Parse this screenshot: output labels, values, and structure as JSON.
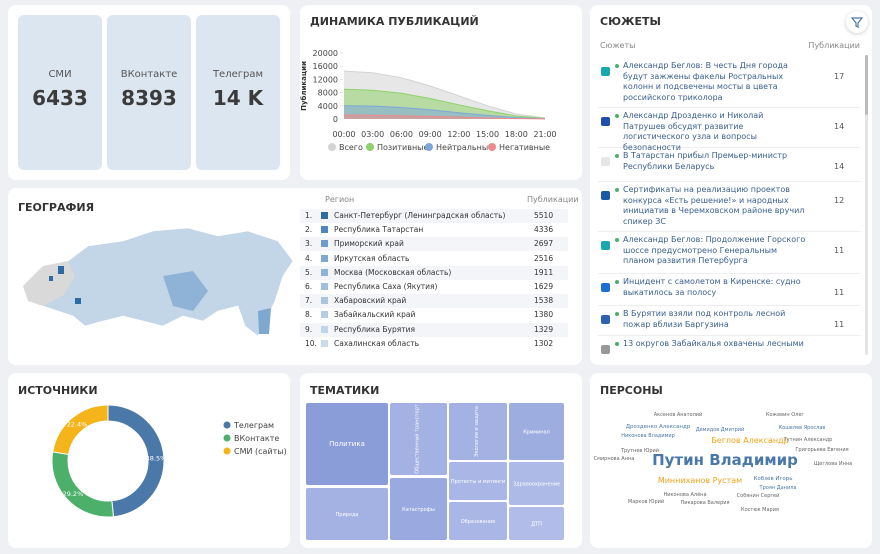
{
  "stats": [
    {
      "label": "СМИ",
      "value": 6433
    },
    {
      "label": "ВКонтакте",
      "value": 8393
    },
    {
      "label": "Телеграм",
      "value": "14 K"
    }
  ],
  "chart_data": [
    {
      "type": "area",
      "title": "ДИНАМИКА ПУБЛИКАЦИЙ",
      "y_label": "Публикации",
      "categories": [
        "00:00",
        "03:00",
        "06:00",
        "09:00",
        "12:00",
        "15:00",
        "18:00",
        "21:00"
      ],
      "series": [
        {
          "name": "Всего",
          "color": "#d4d4d4",
          "values": [
            14500,
            14000,
            12500,
            10000,
            7000,
            4000,
            1500,
            300
          ]
        },
        {
          "name": "Позитивные",
          "color": "#8fd16a",
          "values": [
            9000,
            8700,
            7800,
            6200,
            4300,
            2500,
            900,
            200
          ]
        },
        {
          "name": "Нейтральные",
          "color": "#7ea6d8",
          "values": [
            4000,
            3900,
            3500,
            2800,
            1900,
            1100,
            400,
            80
          ]
        },
        {
          "name": "Негативные",
          "color": "#f08a8a",
          "values": [
            1200,
            1150,
            1000,
            800,
            550,
            300,
            100,
            20
          ]
        }
      ],
      "ylim": [
        0,
        20000
      ],
      "yticks": [
        0,
        4000,
        8000,
        12000,
        16000,
        20000
      ]
    },
    {
      "type": "pie",
      "title": "ИСТОЧНИКИ",
      "donut": true,
      "categories": [
        "Телеграм",
        "ВКонтакте",
        "СМИ (сайты)"
      ],
      "values": [
        48.5,
        29.2,
        22.4
      ],
      "value_labels": [
        "48.5%",
        "29.2%",
        "22.4%"
      ],
      "colors": [
        "#4a78a8",
        "#4cb06a",
        "#f4b41a"
      ]
    }
  ],
  "geography": {
    "title": "ГЕОГРАФИЯ",
    "columns": [
      "Регион",
      "Публикации"
    ],
    "rows": [
      [
        "1.",
        "Санкт-Петербург (Ленинградская область)",
        5510
      ],
      [
        "2.",
        "Республика Татарстан",
        4336
      ],
      [
        "3.",
        "Приморский край",
        2697
      ],
      [
        "4.",
        "Иркутская область",
        2516
      ],
      [
        "5.",
        "Москва (Московская область)",
        1911
      ],
      [
        "6.",
        "Республика Саха (Якутия)",
        1629
      ],
      [
        "7.",
        "Хабаровский край",
        1538
      ],
      [
        "8.",
        "Забайкальский край",
        1380
      ],
      [
        "9.",
        "Республика Бурятия",
        1329
      ],
      [
        "10.",
        "Сахалинская область",
        1302
      ]
    ]
  },
  "stories": {
    "title": "СЮЖЕТЫ",
    "columns": [
      "Сюжеты",
      "Публикации"
    ],
    "items": [
      {
        "text": "Александр Беглов: В честь Дня города будут зажжены факелы Ростральных колонн и подсвечены мосты в цвета российского триколора",
        "count": 17
      },
      {
        "text": "Александр Дрозденко и Николай Патрушев обсудят развитие логистического узла и вопросы безопасности",
        "count": 14
      },
      {
        "text": "В Татарстан прибыл Премьер-министр Республики Беларусь",
        "count": 14
      },
      {
        "text": "Сертификаты на реализацию проектов конкурса «Есть решение!» и народных инициатив в Черемховском районе вручил спикер ЗС",
        "count": 12
      },
      {
        "text": "Александр Беглов: Продолжение Горского шоссе предусмотрено Генеральным планом развития Петербурга",
        "count": 11
      },
      {
        "text": "Инцидент с самолетом в Киренске: судно выкатилось за полосу",
        "count": 11
      },
      {
        "text": "В Бурятии взяли под контроль лесной пожар вблизи Баргузина",
        "count": 11
      },
      {
        "text": "13 округов Забайкалья охвачены лесными"
      }
    ]
  },
  "topics": {
    "title": "ТЕМАТИКИ",
    "items": [
      "Политика",
      "Природа",
      "Общественный транспорт",
      "Катастрофы",
      "Экология и защита",
      "Протесты и митинги",
      "Образование",
      "Криминал",
      "Здравоохранение",
      "ДТП"
    ]
  },
  "persons": {
    "title": "ПЕРСОНЫ",
    "names": [
      "Путин Владимир",
      "Минниханов Рустам",
      "Беглов Александр",
      "Дрозденко Александр",
      "Аксенов Анатолий",
      "Кожевин Олег",
      "Кошелев Ярослав",
      "Никонова Владимир",
      "Демидов Дмитрий",
      "Тутнин Александр",
      "Григорьева Евгения",
      "Трутнев Юрий",
      "Смирнова Анна",
      "Щеглова Инна",
      "Кобзев Игорь",
      "Троян Данила",
      "Никонова Алёна",
      "Собянин Сергей",
      "Марков Юрий",
      "Пикарова Валерия",
      "Костюк Мария"
    ]
  }
}
